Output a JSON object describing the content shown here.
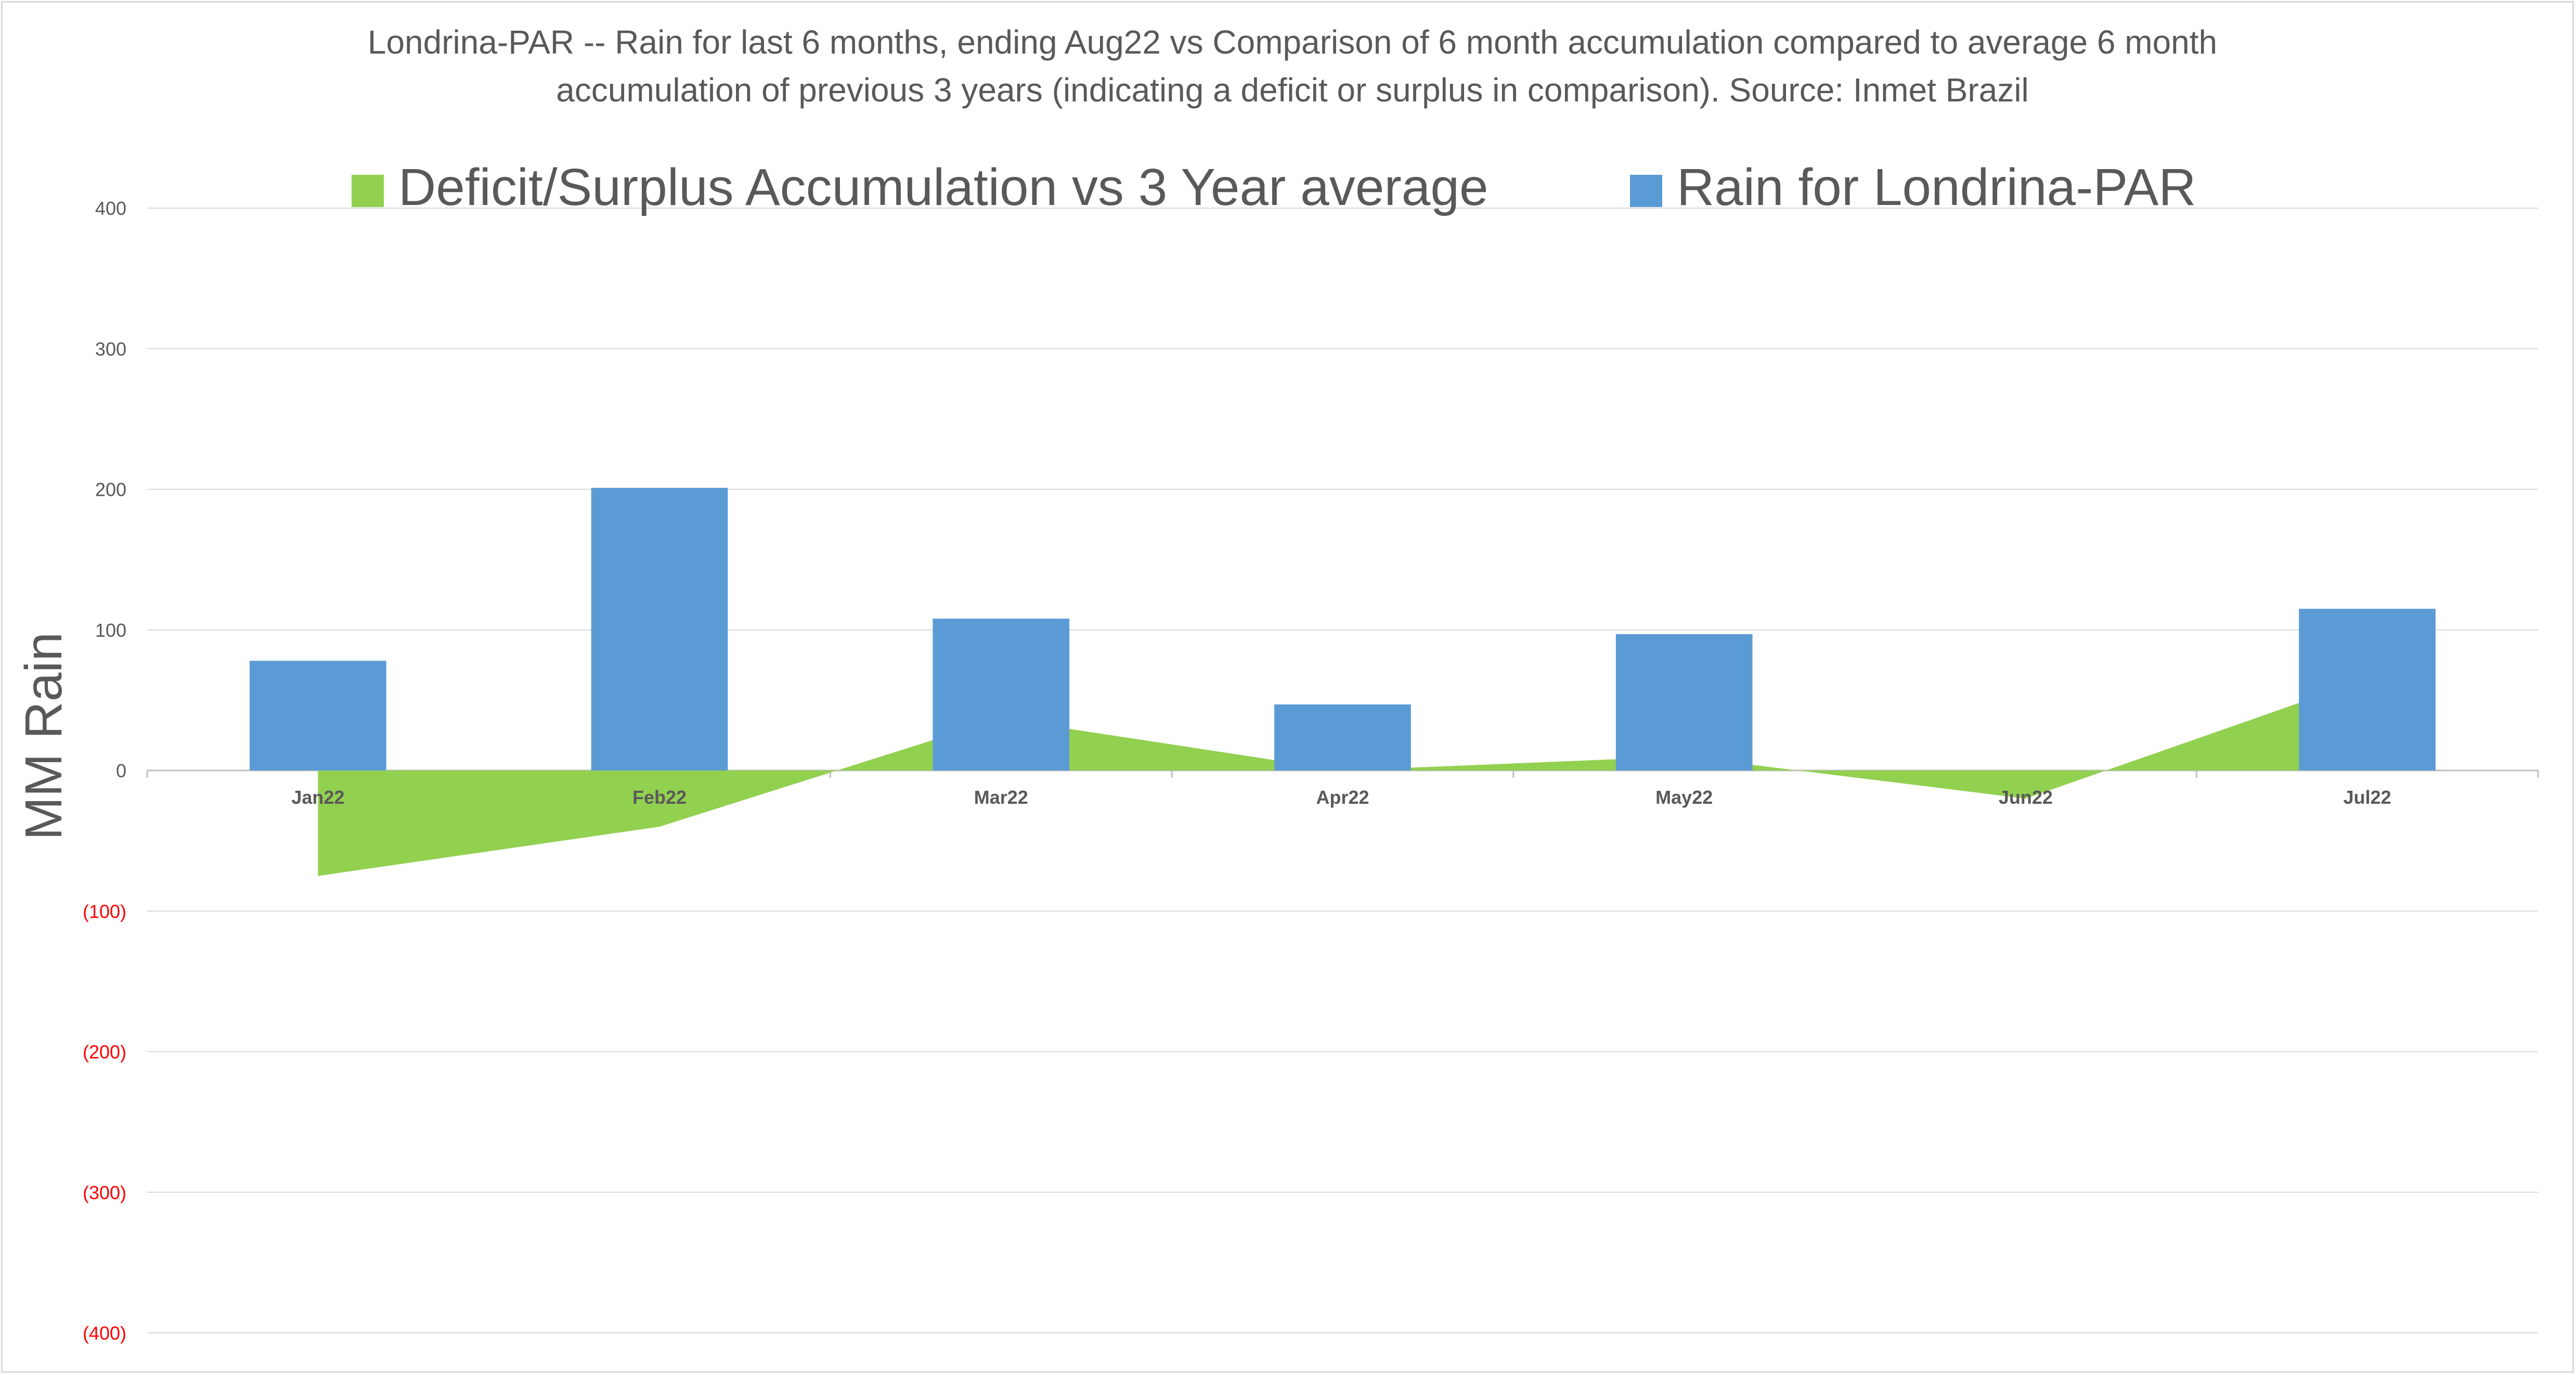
{
  "chart_data": {
    "type": "bar",
    "title_lines": [
      "Londrina-PAR -- Rain for last 6 months, ending Aug22  vs Comparison of 6 month accumulation compared to average 6 month",
      "accumulation of previous 3 years  (indicating a deficit or surplus in comparison). Source: Inmet Brazil"
    ],
    "ylabel": "MM Rain",
    "xlabel": "",
    "categories": [
      "Jan22",
      "Feb22",
      "Mar22",
      "Apr22",
      "May22",
      "Jun22",
      "Jul22"
    ],
    "ylim": [
      -400,
      400
    ],
    "yticks": [
      400,
      300,
      200,
      100,
      0,
      -100,
      -200,
      -300,
      -400
    ],
    "ytick_labels": [
      "400",
      "300",
      "200",
      "100",
      "0",
      "(100)",
      "(200)",
      "(300)",
      "(400)"
    ],
    "grid": true,
    "legend_position": "top",
    "series": [
      {
        "name": "Deficit/Surplus Accumulation vs 3 Year average",
        "type": "area",
        "color": "#92d050",
        "values": [
          -75,
          -40,
          37,
          0,
          10,
          -20,
          65
        ]
      },
      {
        "name": "Rain for Londrina-PAR",
        "type": "bar",
        "color": "#5b9bd5",
        "values": [
          78,
          201,
          108,
          47,
          97,
          0,
          115
        ]
      }
    ],
    "negative_tick_color": "#ff0000",
    "positive_tick_color": "#595959"
  }
}
